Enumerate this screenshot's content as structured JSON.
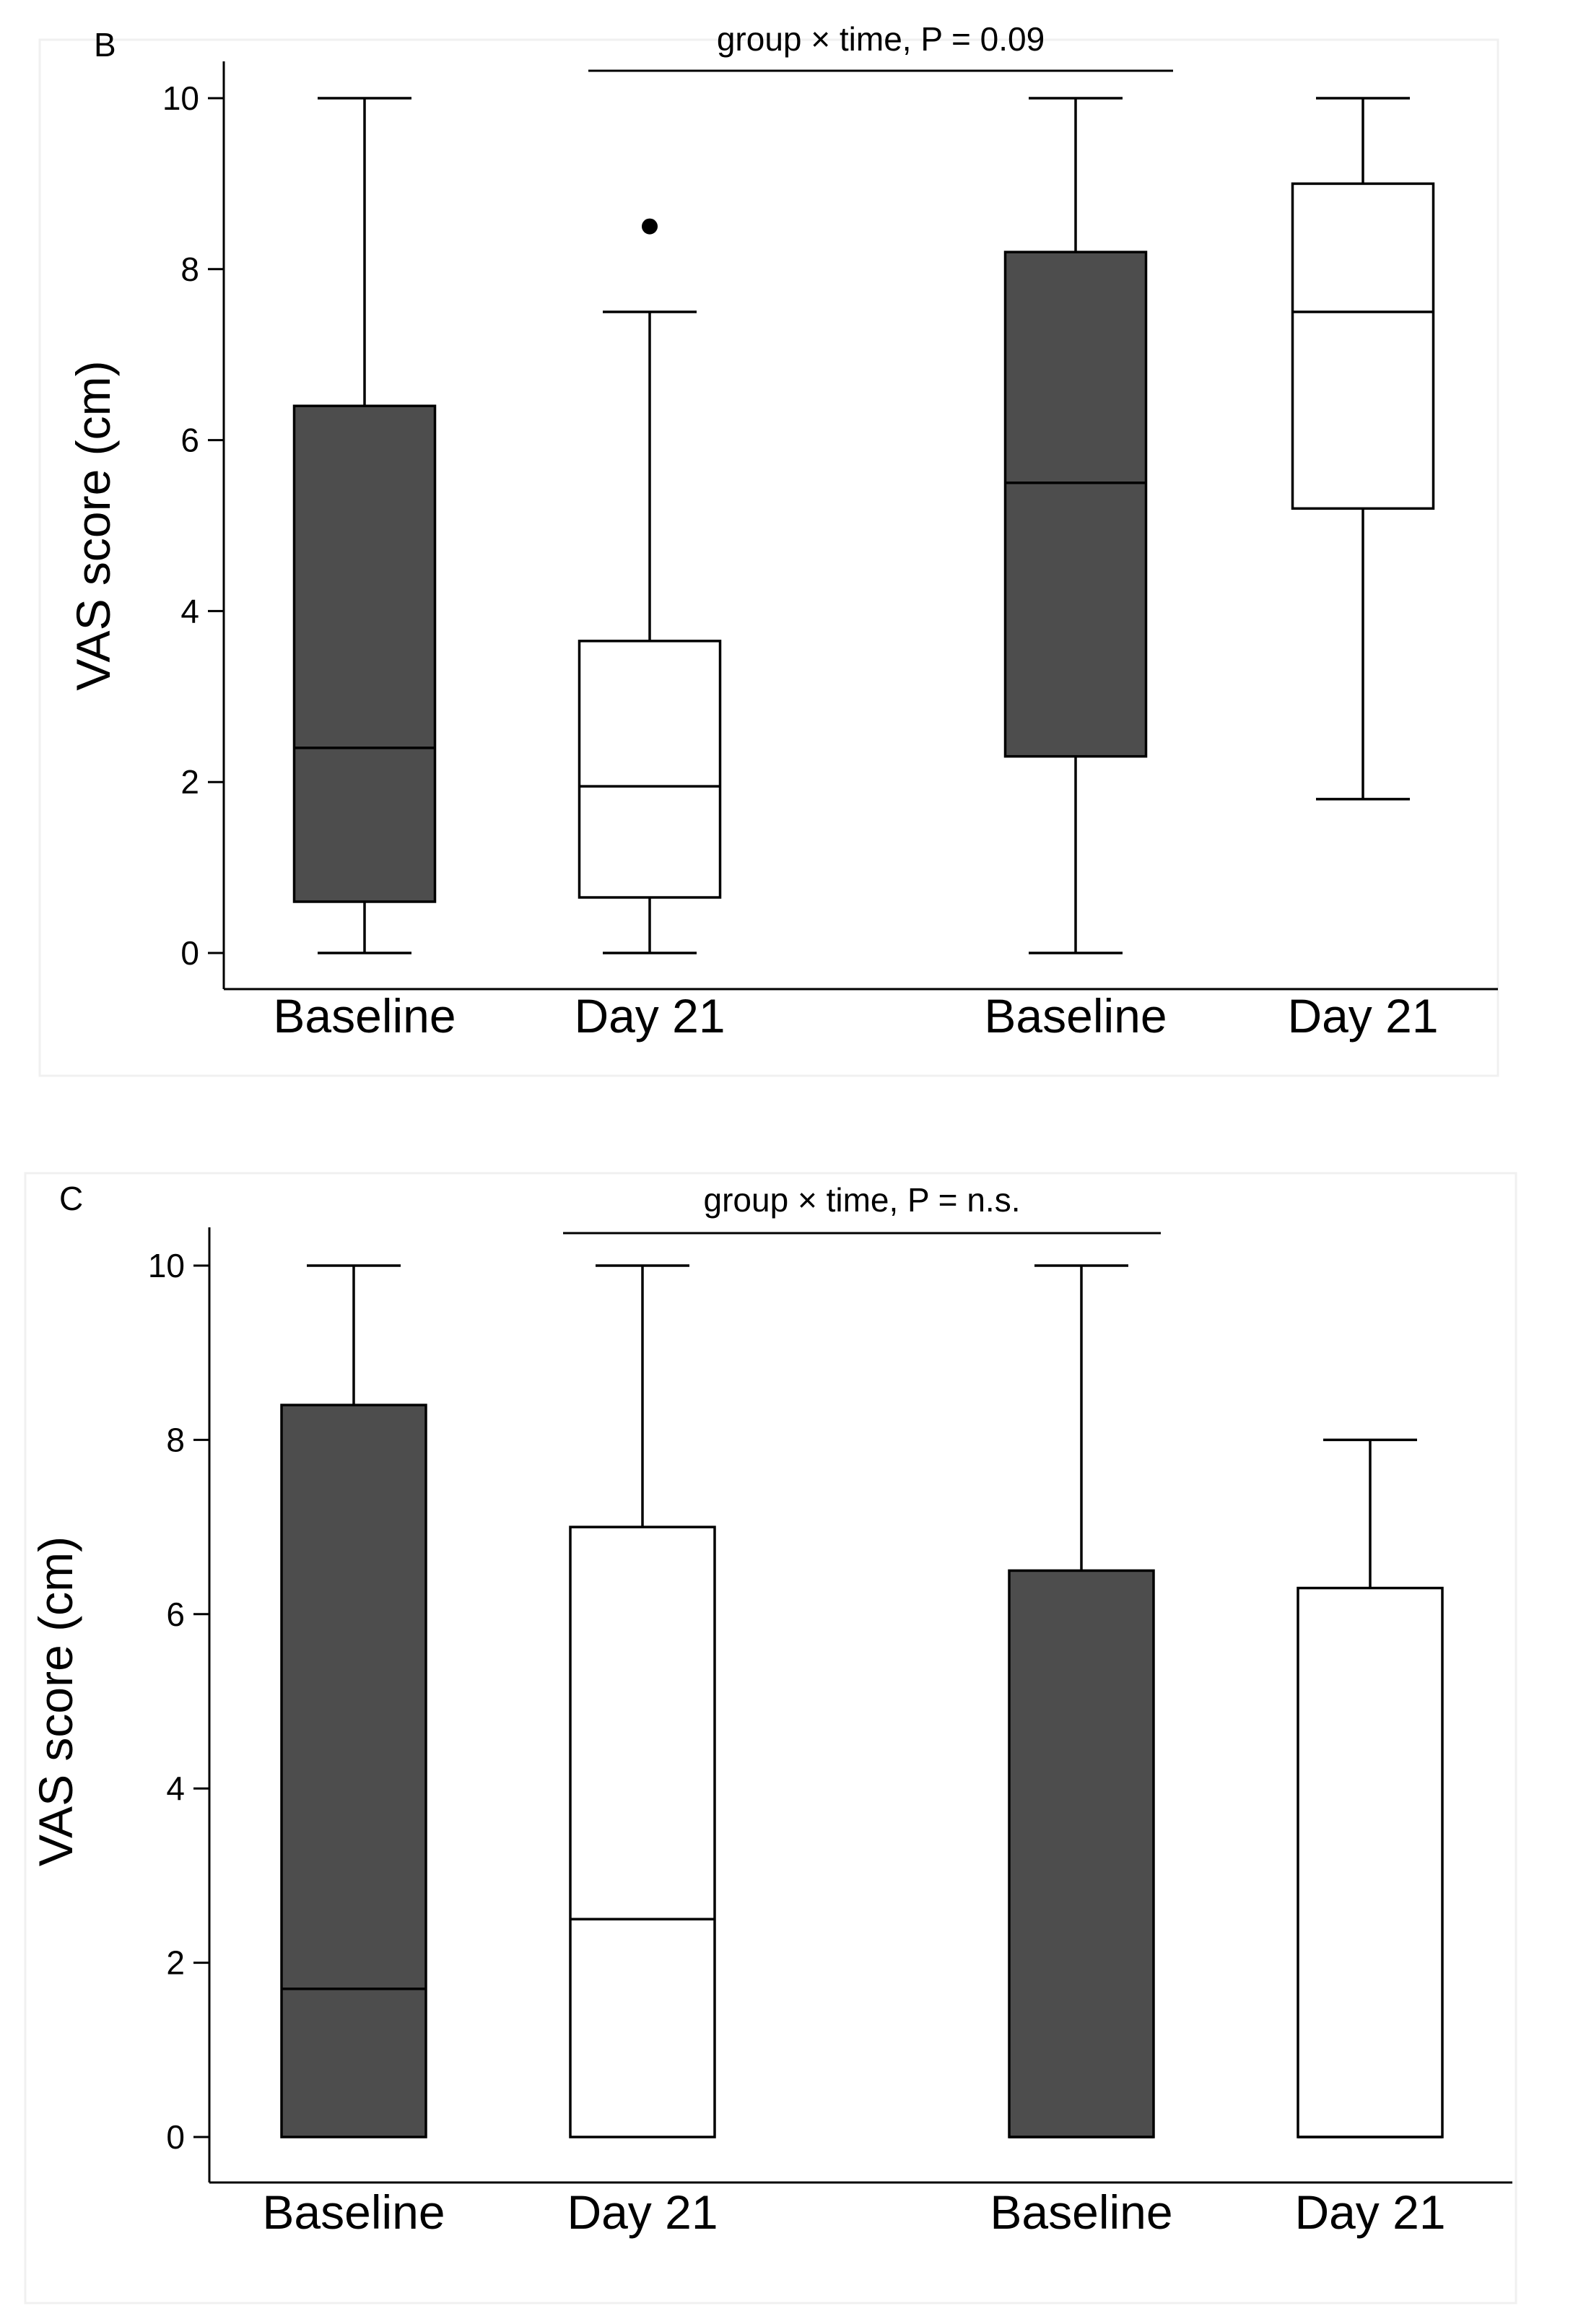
{
  "colors": {
    "baseline_fill": "#4d4d4d",
    "day21_fill": "#ffffff",
    "stroke": "#000000"
  },
  "chart_data": [
    {
      "type": "box",
      "panel": "B",
      "ylabel": "VAS score (cm)",
      "ylim": [
        0,
        10
      ],
      "yticks": [
        0,
        2,
        4,
        6,
        8,
        10
      ],
      "annotation": "group × time, P = 0.09",
      "categories": [
        "Baseline",
        "Day 21",
        "Baseline",
        "Day 21"
      ],
      "boxes": [
        {
          "label": "Baseline",
          "fill": "dark",
          "min": 0,
          "q1": 0.6,
          "median": 2.4,
          "q3": 6.4,
          "max": 10,
          "outliers": []
        },
        {
          "label": "Day 21",
          "fill": "white",
          "min": 0,
          "q1": 0.65,
          "median": 1.95,
          "q3": 3.65,
          "max": 7.5,
          "outliers": [
            8.5
          ]
        },
        {
          "label": "Baseline",
          "fill": "dark",
          "min": 0,
          "q1": 2.3,
          "median": 5.5,
          "q3": 8.2,
          "max": 10,
          "outliers": []
        },
        {
          "label": "Day 21",
          "fill": "white",
          "min": 1.8,
          "q1": 5.2,
          "median": 7.5,
          "q3": 9.0,
          "max": 10,
          "outliers": []
        }
      ]
    },
    {
      "type": "box",
      "panel": "C",
      "ylabel": "VAS score (cm)",
      "ylim": [
        0,
        10
      ],
      "yticks": [
        0,
        2,
        4,
        6,
        8,
        10
      ],
      "annotation": "group × time, P = n.s.",
      "categories": [
        "Baseline",
        "Day 21",
        "Baseline",
        "Day 21"
      ],
      "boxes": [
        {
          "label": "Baseline",
          "fill": "dark",
          "min": 0,
          "q1": 0,
          "median": 1.7,
          "q3": 8.4,
          "max": 10,
          "outliers": []
        },
        {
          "label": "Day 21",
          "fill": "white",
          "min": 0,
          "q1": 0,
          "median": 2.5,
          "q3": 7.0,
          "max": 10,
          "outliers": []
        },
        {
          "label": "Baseline",
          "fill": "dark",
          "min": 0,
          "q1": 0,
          "median": 0,
          "q3": 6.5,
          "max": 10,
          "outliers": []
        },
        {
          "label": "Day 21",
          "fill": "white",
          "min": 0,
          "q1": 0,
          "median": 0,
          "q3": 6.3,
          "max": 8,
          "outliers": []
        }
      ]
    }
  ]
}
